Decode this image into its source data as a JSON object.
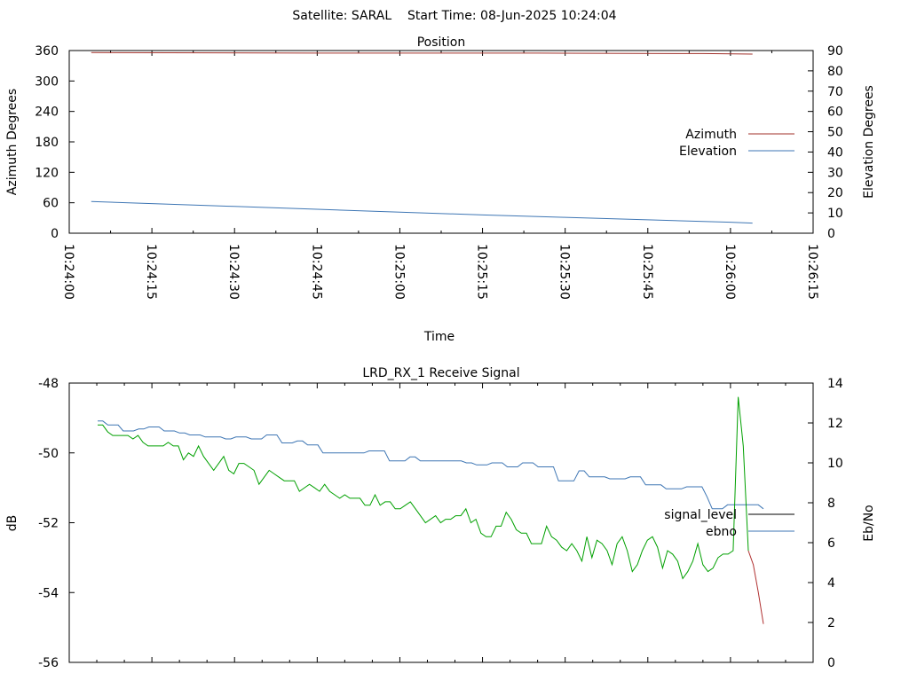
{
  "figure": {
    "header": "Satellite: SARAL    Start Time: 08-Jun-2025 10:24:04"
  },
  "colors": {
    "azimuth": "#a0302a",
    "elevation": "#3e76b4",
    "signal_level": "#000000",
    "signal_trace": "#00a000",
    "signal_tail": "#b03030",
    "ebno": "#3e76b4"
  },
  "chart_data": [
    {
      "type": "line",
      "title": "Position",
      "xlabel": "Time",
      "ylabel": "Azimuth Degrees",
      "y2label": "Elevation Degrees",
      "xlim": [
        "10:24:00",
        "10:26:15"
      ],
      "ylim": [
        0,
        360
      ],
      "y2lim": [
        0,
        90
      ],
      "x_ticks": [
        "10:24:00",
        "10:24:15",
        "10:24:30",
        "10:24:45",
        "10:25:00",
        "10:25:15",
        "10:25:30",
        "10:25:45",
        "10:26:00",
        "10:26:15"
      ],
      "y_ticks": [
        "0",
        "60",
        "120",
        "180",
        "240",
        "300",
        "360"
      ],
      "y2_ticks": [
        "0",
        "10",
        "20",
        "30",
        "40",
        "50",
        "60",
        "70",
        "80",
        "90"
      ],
      "legend": "right",
      "series": [
        {
          "name": "Azimuth",
          "axis": "y",
          "x": [
            "10:24:04",
            "10:24:45",
            "10:25:25",
            "10:25:55",
            "10:26:04"
          ],
          "values": [
            356,
            355,
            355,
            354,
            353
          ]
        },
        {
          "name": "Elevation",
          "axis": "y2",
          "x": [
            "10:24:04",
            "10:24:15",
            "10:24:30",
            "10:24:45",
            "10:25:00",
            "10:25:15",
            "10:25:30",
            "10:25:45",
            "10:26:00",
            "10:26:04"
          ],
          "values": [
            15.6,
            14.6,
            13.2,
            11.8,
            10.4,
            9.0,
            7.8,
            6.6,
            5.4,
            5.0
          ]
        }
      ]
    },
    {
      "type": "line",
      "title": "LRD_RX_1 Receive Signal",
      "xlabel": "",
      "ylabel": "dB",
      "y2label": "Eb/No",
      "ylim": [
        -56,
        -48
      ],
      "y2lim": [
        0,
        14
      ],
      "y_ticks": [
        "-48",
        "-50",
        "-52",
        "-54",
        "-56"
      ],
      "y2_ticks": [
        "0",
        "2",
        "4",
        "6",
        "8",
        "10",
        "12",
        "14"
      ],
      "x_minor_ticks": 27,
      "legend": "right",
      "series": [
        {
          "name": "signal_level",
          "axis": "y",
          "values": [
            -49.2,
            -49.2,
            -49.4,
            -49.5,
            -49.5,
            -49.5,
            -49.5,
            -49.6,
            -49.5,
            -49.7,
            -49.8,
            -49.8,
            -49.8,
            -49.8,
            -49.7,
            -49.8,
            -49.8,
            -50.2,
            -50.0,
            -50.1,
            -49.8,
            -50.1,
            -50.3,
            -50.5,
            -50.3,
            -50.1,
            -50.5,
            -50.6,
            -50.3,
            -50.3,
            -50.4,
            -50.5,
            -50.9,
            -50.7,
            -50.5,
            -50.6,
            -50.7,
            -50.8,
            -50.8,
            -50.8,
            -51.1,
            -51.0,
            -50.9,
            -51.0,
            -51.1,
            -50.9,
            -51.1,
            -51.2,
            -51.3,
            -51.2,
            -51.3,
            -51.3,
            -51.3,
            -51.5,
            -51.5,
            -51.2,
            -51.5,
            -51.4,
            -51.4,
            -51.6,
            -51.6,
            -51.5,
            -51.4,
            -51.6,
            -51.8,
            -52.0,
            -51.9,
            -51.8,
            -52.0,
            -51.9,
            -51.9,
            -51.8,
            -51.8,
            -51.6,
            -52.0,
            -51.9,
            -52.3,
            -52.4,
            -52.4,
            -52.1,
            -52.1,
            -51.7,
            -51.9,
            -52.2,
            -52.3,
            -52.3,
            -52.6,
            -52.6,
            -52.6,
            -52.1,
            -52.4,
            -52.5,
            -52.7,
            -52.8,
            -52.6,
            -52.8,
            -53.1,
            -52.4,
            -53.0,
            -52.5,
            -52.6,
            -52.8,
            -53.2,
            -52.6,
            -52.4,
            -52.8,
            -53.4,
            -53.2,
            -52.8,
            -52.5,
            -52.4,
            -52.7,
            -53.3,
            -52.8,
            -52.9,
            -53.1,
            -53.6,
            -53.4,
            -53.1,
            -52.6,
            -53.2,
            -53.4,
            -53.3,
            -53.0,
            -52.9,
            -52.9,
            -52.8,
            -48.4,
            -49.8,
            -52.8,
            -53.2,
            -54.0,
            -54.9
          ],
          "tail_from_index": 129
        },
        {
          "name": "ebno",
          "axis": "y2",
          "values": [
            12.1,
            12.1,
            11.9,
            11.9,
            11.9,
            11.6,
            11.6,
            11.6,
            11.7,
            11.7,
            11.8,
            11.8,
            11.8,
            11.6,
            11.6,
            11.6,
            11.5,
            11.5,
            11.4,
            11.4,
            11.4,
            11.3,
            11.3,
            11.3,
            11.3,
            11.2,
            11.2,
            11.3,
            11.3,
            11.3,
            11.2,
            11.2,
            11.2,
            11.4,
            11.4,
            11.4,
            11.0,
            11.0,
            11.0,
            11.1,
            11.1,
            10.9,
            10.9,
            10.9,
            10.5,
            10.5,
            10.5,
            10.5,
            10.5,
            10.5,
            10.5,
            10.5,
            10.5,
            10.6,
            10.6,
            10.6,
            10.6,
            10.1,
            10.1,
            10.1,
            10.1,
            10.3,
            10.3,
            10.1,
            10.1,
            10.1,
            10.1,
            10.1,
            10.1,
            10.1,
            10.1,
            10.1,
            10.0,
            10.0,
            9.9,
            9.9,
            9.9,
            10.0,
            10.0,
            10.0,
            9.8,
            9.8,
            9.8,
            10.0,
            10.0,
            10.0,
            9.8,
            9.8,
            9.8,
            9.8,
            9.1,
            9.1,
            9.1,
            9.1,
            9.6,
            9.6,
            9.3,
            9.3,
            9.3,
            9.3,
            9.2,
            9.2,
            9.2,
            9.2,
            9.3,
            9.3,
            9.3,
            8.9,
            8.9,
            8.9,
            8.9,
            8.7,
            8.7,
            8.7,
            8.7,
            8.8,
            8.8,
            8.8,
            8.8,
            8.3,
            7.7,
            7.7,
            7.7,
            7.9,
            7.9,
            7.9,
            7.9,
            7.9,
            7.9,
            7.9,
            7.7
          ]
        }
      ]
    }
  ]
}
